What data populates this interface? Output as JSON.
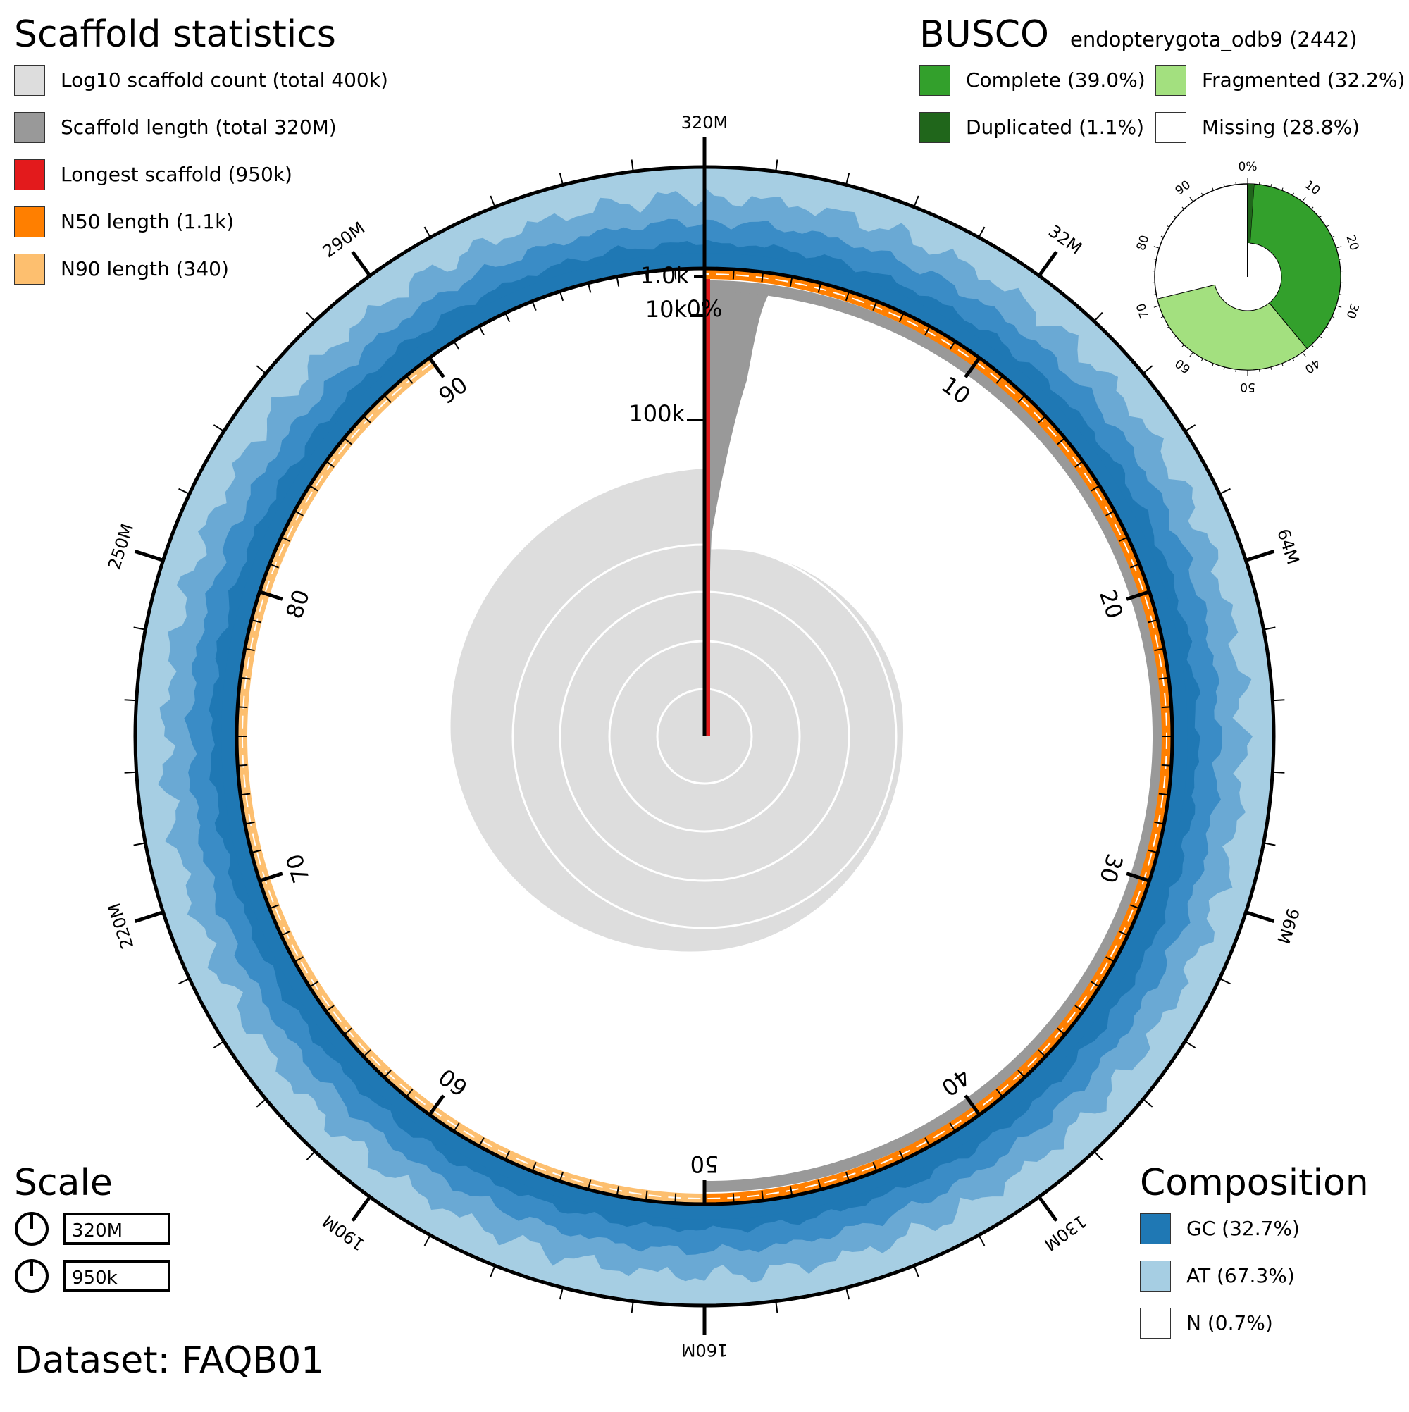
{
  "title_scaffold": "Scaffold statistics",
  "legend_scaffold": [
    {
      "label": "Log10 scaffold count (total 400k)",
      "color": "#dddddd"
    },
    {
      "label": "Scaffold length (total 320M)",
      "color": "#999999"
    },
    {
      "label": "Longest scaffold (950k)",
      "color": "#e31a1c"
    },
    {
      "label": "N50 length (1.1k)",
      "color": "#ff7f00"
    },
    {
      "label": "N90 length (340)",
      "color": "#fdbf6f"
    }
  ],
  "busco": {
    "title": "BUSCO",
    "lineage": "endopterygota_odb9 (2442)",
    "legend": [
      {
        "label": "Complete (39.0%)",
        "color": "#33a02c"
      },
      {
        "label": "Fragmented (32.2%)",
        "color": "#a3e07f"
      },
      {
        "label": "Duplicated (1.1%)",
        "color": "#20661b"
      },
      {
        "label": "Missing (28.8%)",
        "color": "#ffffff"
      }
    ],
    "values": {
      "complete": 39.0,
      "duplicated": 1.1,
      "fragmented": 32.2,
      "missing": 28.8
    },
    "ticks": [
      "0%",
      "10",
      "20",
      "30",
      "40",
      "50",
      "60",
      "70",
      "80",
      "90"
    ]
  },
  "scale": {
    "title": "Scale",
    "values": [
      "320M",
      "950k"
    ]
  },
  "composition": {
    "title": "Composition",
    "legend": [
      {
        "label": "GC (32.7%)",
        "color": "#1f78b4"
      },
      {
        "label": "AT (67.3%)",
        "color": "#a6cee3"
      },
      {
        "label": "N (0.7%)",
        "color": "#ffffff"
      }
    ]
  },
  "dataset_label": "Dataset: FAQB01",
  "chart_data": {
    "type": "snail",
    "total_length": "320M",
    "scaffold_count": "400k",
    "longest_scaffold": "950k",
    "n50": "1.1k",
    "n90": "340",
    "outer_axis_labels": [
      "320M",
      "32M",
      "64M",
      "96M",
      "130M",
      "160M",
      "190M",
      "220M",
      "250M",
      "290M"
    ],
    "percent_axis_labels": [
      "0%",
      "10",
      "20",
      "30",
      "40",
      "50",
      "60",
      "70",
      "80",
      "90"
    ],
    "radial_axis_labels": [
      "1.0k",
      "10k",
      "100k"
    ],
    "n50_percent": 50,
    "n90_percent": 90,
    "gc_percent": 32.7,
    "at_percent": 67.3,
    "n_percent": 0.7
  }
}
